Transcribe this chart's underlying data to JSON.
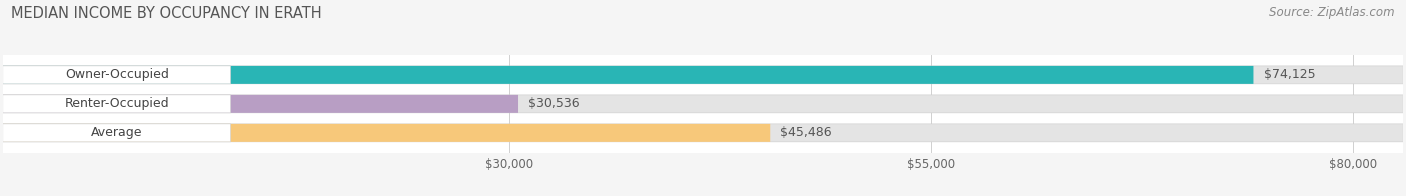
{
  "title": "MEDIAN INCOME BY OCCUPANCY IN ERATH",
  "source": "Source: ZipAtlas.com",
  "categories": [
    "Owner-Occupied",
    "Renter-Occupied",
    "Average"
  ],
  "values": [
    74125,
    30536,
    45486
  ],
  "bar_colors": [
    "#29b5b5",
    "#b89ec4",
    "#f7c87a"
  ],
  "value_labels": [
    "$74,125",
    "$30,536",
    "$45,486"
  ],
  "xmin": 0,
  "xmax": 83000,
  "xticks": [
    30000,
    55000,
    80000
  ],
  "xtick_labels": [
    "$30,000",
    "$55,000",
    "$80,000"
  ],
  "background_color": "#f5f5f5",
  "bar_bg_color": "#e4e4e4",
  "plot_bg_color": "#ffffff",
  "title_fontsize": 10.5,
  "source_fontsize": 8.5,
  "label_fontsize": 9,
  "value_fontsize": 9,
  "bar_height": 0.62,
  "bar_gap": 0.38,
  "figsize": [
    14.06,
    1.96
  ],
  "dpi": 100
}
